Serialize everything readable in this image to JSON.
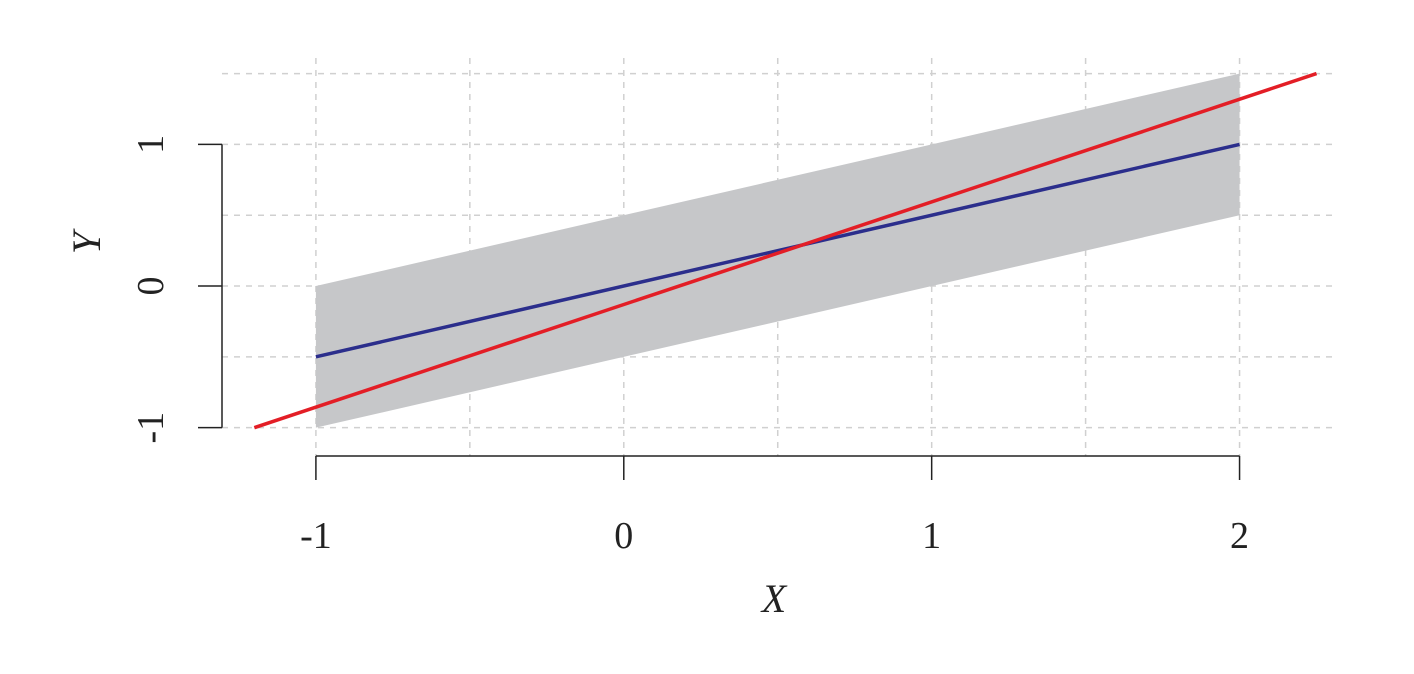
{
  "chart_data": {
    "type": "line",
    "x_label": "X",
    "y_label": "Y",
    "xlim": [
      -1.305,
      2.31
    ],
    "ylim": [
      -1.2,
      1.61
    ],
    "xticks": [
      -1,
      0,
      1,
      2
    ],
    "yticks": [
      -1,
      0,
      1
    ],
    "xgrid": [
      -1,
      -0.5,
      0,
      0.5,
      1,
      1.5,
      2
    ],
    "ygrid": [
      -1,
      -0.5,
      0,
      0.5,
      1,
      1.5
    ],
    "grid": true,
    "series": [
      {
        "kind": "band",
        "color": "#c6c7c9",
        "x": [
          -1,
          2
        ],
        "lower": [
          -1,
          0.5
        ],
        "upper": [
          0,
          1.5
        ]
      },
      {
        "kind": "line",
        "color": "#2b2e8c",
        "x": [
          -1,
          2
        ],
        "values": [
          -0.5,
          1
        ]
      },
      {
        "kind": "line",
        "color": "#e31e26",
        "x": [
          -1.2,
          2.25
        ],
        "values": [
          -1,
          1.5
        ]
      }
    ]
  }
}
